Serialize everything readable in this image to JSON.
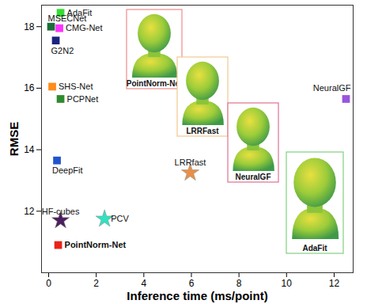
{
  "chart_data": {
    "type": "scatter",
    "x_label": "Inference time (ms/point)",
    "y_label": "RMSE",
    "xlim": [
      -0.3,
      12.8
    ],
    "ylim": [
      10.0,
      18.7
    ],
    "xticks": [
      0,
      2,
      4,
      6,
      8,
      10,
      12
    ],
    "yticks": [
      12,
      14,
      16,
      18
    ],
    "grid": false,
    "series": [
      {
        "name": "AdaFit",
        "color": "#33dd33",
        "marker": "square",
        "x": [
          0.5
        ],
        "values": [
          18.45
        ]
      },
      {
        "name": "MSECNet",
        "color": "#1b6e3a",
        "marker": "square",
        "x": [
          0.1
        ],
        "values": [
          18.0
        ]
      },
      {
        "name": "CMG-Net",
        "color": "#ff33ff",
        "marker": "square",
        "x": [
          0.45
        ],
        "values": [
          17.95
        ]
      },
      {
        "name": "G2N2",
        "color": "#1a237e",
        "marker": "square",
        "x": [
          0.3
        ],
        "values": [
          17.55
        ]
      },
      {
        "name": "SHS-Net",
        "color": "#ff8c1a",
        "marker": "square",
        "x": [
          0.15
        ],
        "values": [
          16.05
        ]
      },
      {
        "name": "PCPNet",
        "color": "#2e8b2e",
        "marker": "square",
        "x": [
          0.5
        ],
        "values": [
          15.65
        ]
      },
      {
        "name": "DeepFit",
        "color": "#2255cc",
        "marker": "square",
        "x": [
          0.35
        ],
        "values": [
          13.65
        ]
      },
      {
        "name": "HF-cubes",
        "color": "#4b1f5e",
        "marker": "star",
        "x": [
          0.5
        ],
        "values": [
          11.7
        ]
      },
      {
        "name": "PCV",
        "color": "#33e0c0",
        "marker": "star",
        "x": [
          2.35
        ],
        "values": [
          11.75
        ]
      },
      {
        "name": "PointNorm-Net",
        "color": "#e8231a",
        "marker": "square",
        "x": [
          0.4
        ],
        "values": [
          10.9
        ]
      },
      {
        "name": "LRRfast",
        "color": "#e8904a",
        "marker": "star",
        "x": [
          5.95
        ],
        "values": [
          13.25
        ]
      },
      {
        "name": "NeuralGF",
        "color": "#9955dd",
        "marker": "square",
        "x": [
          12.5
        ],
        "values": [
          15.65
        ]
      }
    ],
    "annotations": [
      {
        "text": "PointNorm-Net",
        "color": "#f08a8a"
      },
      {
        "text": "LRRFast",
        "color": "#f0c890"
      },
      {
        "text": "NeuralGF",
        "color": "#e07090"
      },
      {
        "text": "AdaFit",
        "color": "#80d080"
      }
    ]
  }
}
